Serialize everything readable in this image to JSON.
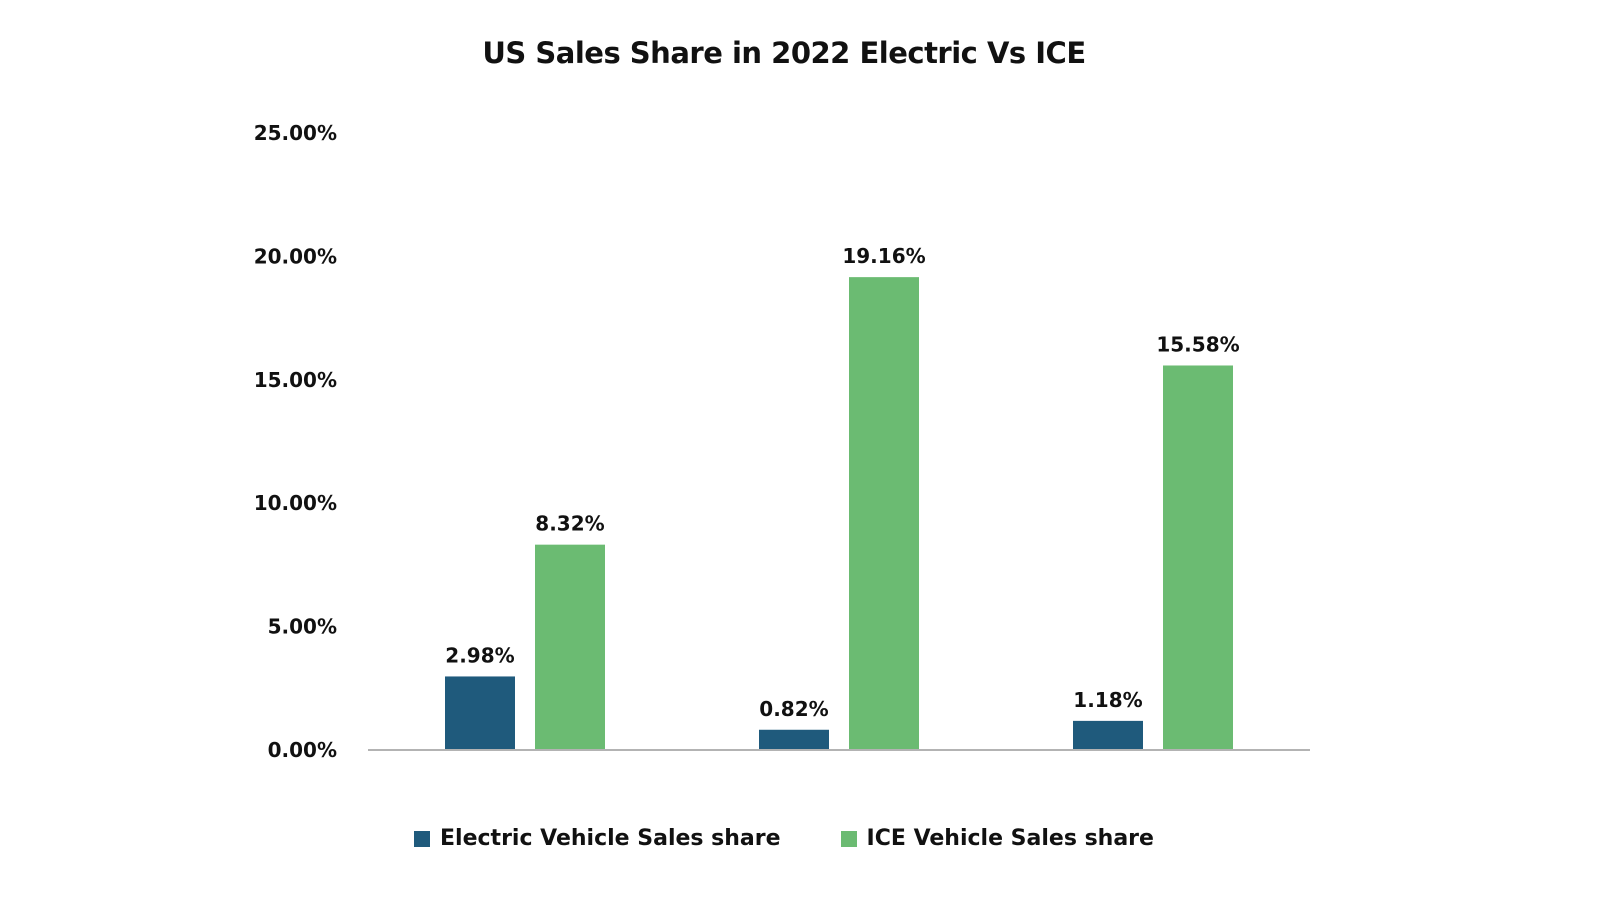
{
  "chart_data": {
    "type": "bar",
    "title": "US Sales Share in 2022 Electric Vs ICE",
    "xlabel": "",
    "ylabel": "",
    "ylim": [
      0,
      25
    ],
    "yticks": [
      "0.00%",
      "5.00%",
      "10.00%",
      "15.00%",
      "20.00%",
      "25.00%"
    ],
    "ytick_values": [
      0,
      5,
      10,
      15,
      20,
      25
    ],
    "grid": false,
    "legend_position": "bottom",
    "series": [
      {
        "name": "Electric Vehicle Sales share",
        "color": "#1f5a7c",
        "values": [
          2.98,
          0.82,
          1.18
        ],
        "labels": [
          "2.98%",
          "0.82%",
          "1.18%"
        ]
      },
      {
        "name": "ICE Vehicle Sales share",
        "color": "#6bbb72",
        "values": [
          8.32,
          19.16,
          15.58
        ],
        "labels": [
          "8.32%",
          "19.16%",
          "15.58%"
        ]
      }
    ]
  }
}
